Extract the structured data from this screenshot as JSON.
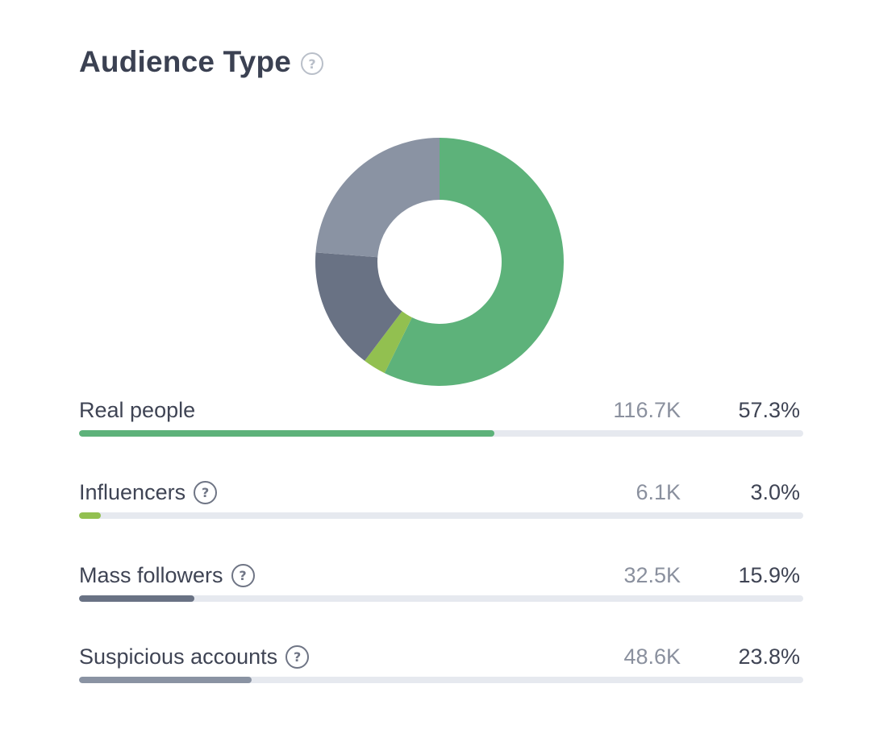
{
  "title": "Audience Type",
  "chart_data": {
    "type": "pie",
    "categories": [
      "Real people",
      "Influencers",
      "Mass followers",
      "Suspicious accounts"
    ],
    "values": [
      57.3,
      3.0,
      15.9,
      23.8
    ],
    "counts": [
      "116.7K",
      "6.1K",
      "32.5K",
      "48.6K"
    ],
    "percent_labels": [
      "57.3%",
      "3.0%",
      "15.9%",
      "23.8%"
    ],
    "colors": [
      "#5db27a",
      "#92c050",
      "#697284",
      "#8a93a3"
    ]
  },
  "rows": [
    {
      "label": "Real people",
      "count": "116.7K",
      "percent": "57.3%",
      "value": 57.3,
      "color": "#5db27a",
      "help": false
    },
    {
      "label": "Influencers",
      "count": "6.1K",
      "percent": "3.0%",
      "value": 3.0,
      "color": "#92c050",
      "help": true
    },
    {
      "label": "Mass followers",
      "count": "32.5K",
      "percent": "15.9%",
      "value": 15.9,
      "color": "#697284",
      "help": true
    },
    {
      "label": "Suspicious accounts",
      "count": "48.6K",
      "percent": "23.8%",
      "value": 23.8,
      "color": "#8a93a3",
      "help": true
    }
  ],
  "colors": {
    "title": "#3b4152",
    "track": "#e6e9ef"
  },
  "icons": {
    "help": "?"
  }
}
